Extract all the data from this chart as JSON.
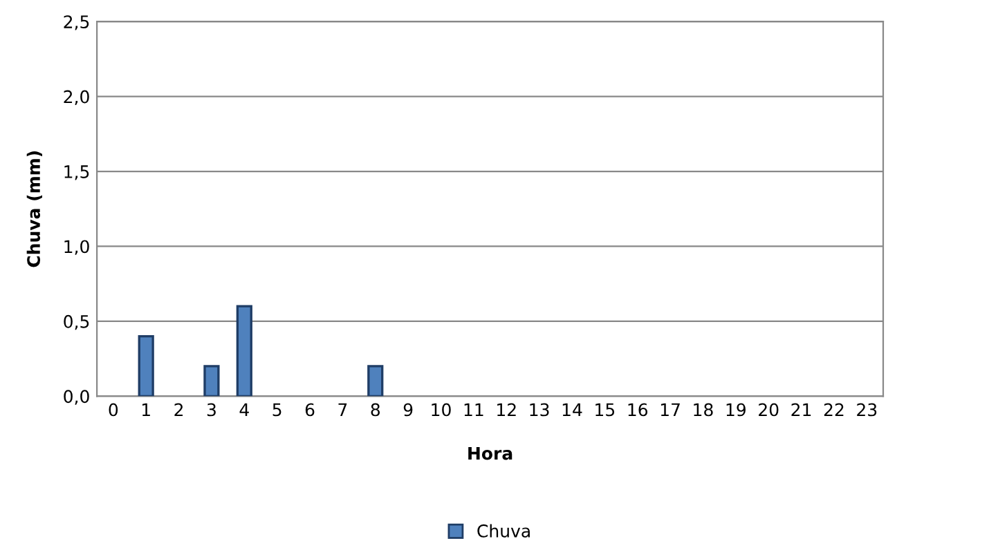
{
  "chart_data": {
    "type": "bar",
    "xlabel": "Hora",
    "ylabel": "Chuva (mm)",
    "categories": [
      "0",
      "1",
      "2",
      "3",
      "4",
      "5",
      "6",
      "7",
      "8",
      "9",
      "10",
      "11",
      "12",
      "13",
      "14",
      "15",
      "16",
      "17",
      "18",
      "19",
      "20",
      "21",
      "22",
      "23"
    ],
    "series": [
      {
        "name": "Chuva",
        "color": "#4f81bd",
        "values": [
          0,
          0.4,
          0,
          0.2,
          0.6,
          0,
          0,
          0,
          0.2,
          0,
          0,
          0,
          0,
          0,
          0,
          0,
          0,
          0,
          0,
          0,
          0,
          0,
          0,
          0
        ]
      }
    ],
    "ylim": [
      0,
      2.5
    ],
    "yticks": [
      {
        "value": 0,
        "label": "0,0"
      },
      {
        "value": 0.5,
        "label": "0,5"
      },
      {
        "value": 1.0,
        "label": "1,0"
      },
      {
        "value": 1.5,
        "label": "1,5"
      },
      {
        "value": 2.0,
        "label": "2,0"
      },
      {
        "value": 2.5,
        "label": "2,5"
      }
    ],
    "grid": "y",
    "legend": "bottom"
  }
}
